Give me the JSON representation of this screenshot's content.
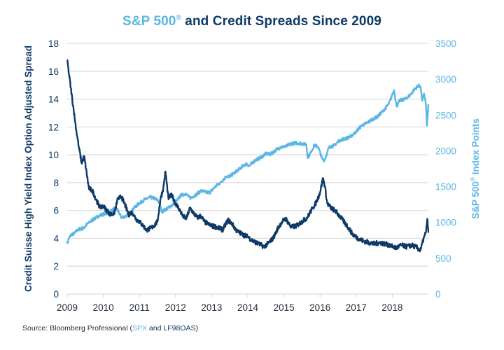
{
  "chart_data": {
    "type": "line",
    "title": {
      "part1": "S&P 500",
      "reg": "®",
      "part2": " and Credit Spreads Since 2009"
    },
    "xlabel": "",
    "ylabel_left": "Credit Suisse High Yield Index Option Adjusted Spread",
    "ylabel_right": {
      "part1": "S&P 500",
      "reg": "®",
      "part2": " Index Points"
    },
    "x_ticks": [
      "2009",
      "2010",
      "2011",
      "2012",
      "2013",
      "2014",
      "2015",
      "2016",
      "2017",
      "2018"
    ],
    "x_range": [
      2009,
      2019
    ],
    "y_left_ticks": [
      "0",
      "2",
      "4",
      "6",
      "8",
      "10",
      "12",
      "14",
      "16",
      "18"
    ],
    "y_left_range": [
      0,
      18
    ],
    "y_right_ticks": [
      "0",
      "500",
      "1000",
      "1500",
      "2000",
      "2500",
      "3000",
      "3500"
    ],
    "y_right_range": [
      0,
      3500
    ],
    "grid": true,
    "colors": {
      "spread": "#0d3a66",
      "spx": "#5bb6e6",
      "grid": "#d9d9d9"
    },
    "series": [
      {
        "name": "Credit Suisse High Yield Index OAS (LF98OAS)",
        "axis": "left",
        "x": [
          2009.0,
          2009.05,
          2009.1,
          2009.18,
          2009.25,
          2009.32,
          2009.4,
          2009.47,
          2009.52,
          2009.6,
          2009.7,
          2009.8,
          2009.9,
          2010.0,
          2010.1,
          2010.2,
          2010.3,
          2010.4,
          2010.5,
          2010.6,
          2010.7,
          2010.8,
          2010.9,
          2011.0,
          2011.1,
          2011.2,
          2011.3,
          2011.4,
          2011.5,
          2011.58,
          2011.66,
          2011.72,
          2011.8,
          2011.9,
          2012.0,
          2012.1,
          2012.2,
          2012.3,
          2012.4,
          2012.5,
          2012.6,
          2012.7,
          2012.8,
          2012.9,
          2013.0,
          2013.15,
          2013.3,
          2013.45,
          2013.55,
          2013.7,
          2013.85,
          2014.0,
          2014.15,
          2014.3,
          2014.45,
          2014.55,
          2014.7,
          2014.85,
          2014.95,
          2015.05,
          2015.2,
          2015.35,
          2015.5,
          2015.65,
          2015.8,
          2015.9,
          2016.0,
          2016.08,
          2016.13,
          2016.2,
          2016.3,
          2016.45,
          2016.6,
          2016.75,
          2016.9,
          2017.05,
          2017.2,
          2017.35,
          2017.5,
          2017.65,
          2017.8,
          2017.95,
          2018.1,
          2018.25,
          2018.4,
          2018.55,
          2018.7,
          2018.78,
          2018.85,
          2018.9,
          2018.94,
          2018.97,
          2019.0
        ],
        "values": [
          16.8,
          15.8,
          14.8,
          13.2,
          11.8,
          10.6,
          9.4,
          9.9,
          9.0,
          7.6,
          7.4,
          6.8,
          6.2,
          6.3,
          6.0,
          5.7,
          5.8,
          6.8,
          7.0,
          6.4,
          5.7,
          5.9,
          5.4,
          5.2,
          4.9,
          4.6,
          4.7,
          4.9,
          5.2,
          6.8,
          7.6,
          8.8,
          6.9,
          7.1,
          6.5,
          6.1,
          5.6,
          5.4,
          6.2,
          5.8,
          5.5,
          5.6,
          5.2,
          5.0,
          4.9,
          4.8,
          4.6,
          5.3,
          5.1,
          4.5,
          4.3,
          4.1,
          3.8,
          3.6,
          3.4,
          3.6,
          4.0,
          4.8,
          5.2,
          5.4,
          4.8,
          4.9,
          5.2,
          5.5,
          6.2,
          6.6,
          7.3,
          8.3,
          7.8,
          6.5,
          6.2,
          5.9,
          5.4,
          4.9,
          4.3,
          4.0,
          3.8,
          3.7,
          3.6,
          3.7,
          3.6,
          3.5,
          3.3,
          3.5,
          3.4,
          3.5,
          3.3,
          3.1,
          3.8,
          4.2,
          4.6,
          5.4,
          4.4
        ]
      },
      {
        "name": "S&P 500 Index (SPX)",
        "axis": "right",
        "x": [
          2009.0,
          2009.05,
          2009.12,
          2009.2,
          2009.3,
          2009.45,
          2009.6,
          2009.75,
          2009.9,
          2010.05,
          2010.2,
          2010.32,
          2010.42,
          2010.5,
          2010.6,
          2010.72,
          2010.85,
          2011.0,
          2011.15,
          2011.3,
          2011.45,
          2011.55,
          2011.62,
          2011.72,
          2011.85,
          2012.0,
          2012.15,
          2012.28,
          2012.4,
          2012.55,
          2012.7,
          2012.85,
          2012.95,
          2013.1,
          2013.25,
          2013.4,
          2013.5,
          2013.65,
          2013.8,
          2013.95,
          2014.05,
          2014.2,
          2014.35,
          2014.5,
          2014.62,
          2014.75,
          2014.9,
          2015.05,
          2015.2,
          2015.35,
          2015.5,
          2015.62,
          2015.66,
          2015.75,
          2015.85,
          2015.95,
          2016.05,
          2016.12,
          2016.25,
          2016.4,
          2016.55,
          2016.7,
          2016.85,
          2017.0,
          2017.15,
          2017.3,
          2017.45,
          2017.6,
          2017.75,
          2017.9,
          2018.0,
          2018.05,
          2018.12,
          2018.2,
          2018.35,
          2018.5,
          2018.6,
          2018.72,
          2018.78,
          2018.83,
          2018.88,
          2018.93,
          2018.96,
          2019.0
        ],
        "values": [
          700,
          780,
          830,
          850,
          900,
          920,
          1000,
          1050,
          1100,
          1120,
          1150,
          1200,
          1150,
          1070,
          1080,
          1120,
          1200,
          1270,
          1320,
          1350,
          1330,
          1280,
          1150,
          1180,
          1220,
          1280,
          1380,
          1400,
          1340,
          1380,
          1440,
          1420,
          1420,
          1500,
          1560,
          1640,
          1640,
          1700,
          1760,
          1820,
          1790,
          1870,
          1900,
          1960,
          1950,
          2000,
          2050,
          2060,
          2100,
          2110,
          2100,
          2090,
          1900,
          1990,
          2080,
          2050,
          1900,
          1860,
          2050,
          2080,
          2150,
          2170,
          2200,
          2270,
          2350,
          2390,
          2440,
          2480,
          2560,
          2650,
          2780,
          2850,
          2620,
          2700,
          2720,
          2780,
          2850,
          2910,
          2900,
          2700,
          2800,
          2650,
          2350,
          2650
        ]
      }
    ]
  },
  "source": {
    "prefix": "Source: Bloomberg Professional (",
    "spx": "SPX",
    "middle": " and ",
    "lf": "LF98OAS",
    "suffix": ")"
  }
}
